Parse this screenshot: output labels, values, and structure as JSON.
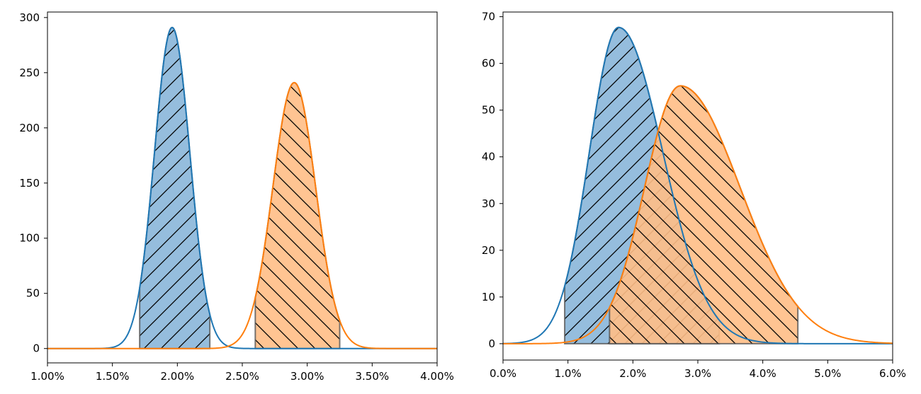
{
  "chart_data": [
    {
      "type": "area",
      "x_format": "percent_2dp",
      "xlim": [
        0.01,
        0.04
      ],
      "ylim": [
        -13,
        305
      ],
      "x_ticks": [
        0.01,
        0.015,
        0.02,
        0.025,
        0.03,
        0.035,
        0.04
      ],
      "x_tick_labels": [
        "1.00%",
        "1.50%",
        "2.00%",
        "2.50%",
        "3.00%",
        "3.50%",
        "4.00%"
      ],
      "y_ticks": [
        0,
        50,
        100,
        150,
        200,
        250,
        300
      ],
      "y_tick_labels": [
        "0",
        "50",
        "100",
        "150",
        "200",
        "250",
        "300"
      ],
      "series": [
        {
          "color": "#1f77b4",
          "fill": "#8ab6d9",
          "hatch": "/",
          "distribution": "normal",
          "mean": 0.0196,
          "sd": 0.00137,
          "peak": 291,
          "shaded_range": [
            0.0171,
            0.0225
          ]
        },
        {
          "color": "#ff7f0e",
          "fill": "#ffbe86",
          "hatch": "\\",
          "distribution": "normal",
          "mean": 0.029,
          "sd": 0.00165,
          "peak": 241,
          "shaded_range": [
            0.026,
            0.0325
          ]
        }
      ]
    },
    {
      "type": "area",
      "x_format": "percent_1dp",
      "xlim": [
        0.0,
        0.06
      ],
      "ylim": [
        -3.5,
        71
      ],
      "x_ticks": [
        0.0,
        0.01,
        0.02,
        0.03,
        0.04,
        0.05,
        0.06
      ],
      "x_tick_labels": [
        "0.0%",
        "1.0%",
        "2.0%",
        "3.0%",
        "4.0%",
        "5.0%",
        "6.0%"
      ],
      "y_ticks": [
        0,
        10,
        20,
        30,
        40,
        50,
        60,
        70
      ],
      "y_tick_labels": [
        "0",
        "10",
        "20",
        "30",
        "40",
        "50",
        "60",
        "70"
      ],
      "series": [
        {
          "color": "#1f77b4",
          "fill": "#8ab6d9",
          "hatch": "/",
          "distribution": "skewed",
          "mode": 0.0178,
          "sd_left": 0.0045,
          "sd_right": 0.0068,
          "peak": 67.7,
          "shaded_range": [
            0.0095,
            0.0333
          ]
        },
        {
          "color": "#ff7f0e",
          "fill": "#ffbe86",
          "hatch": "\\",
          "distribution": "skewed",
          "mode": 0.0273,
          "sd_left": 0.0055,
          "sd_right": 0.0092,
          "peak": 55.2,
          "shaded_range": [
            0.0164,
            0.0454
          ]
        }
      ]
    }
  ]
}
